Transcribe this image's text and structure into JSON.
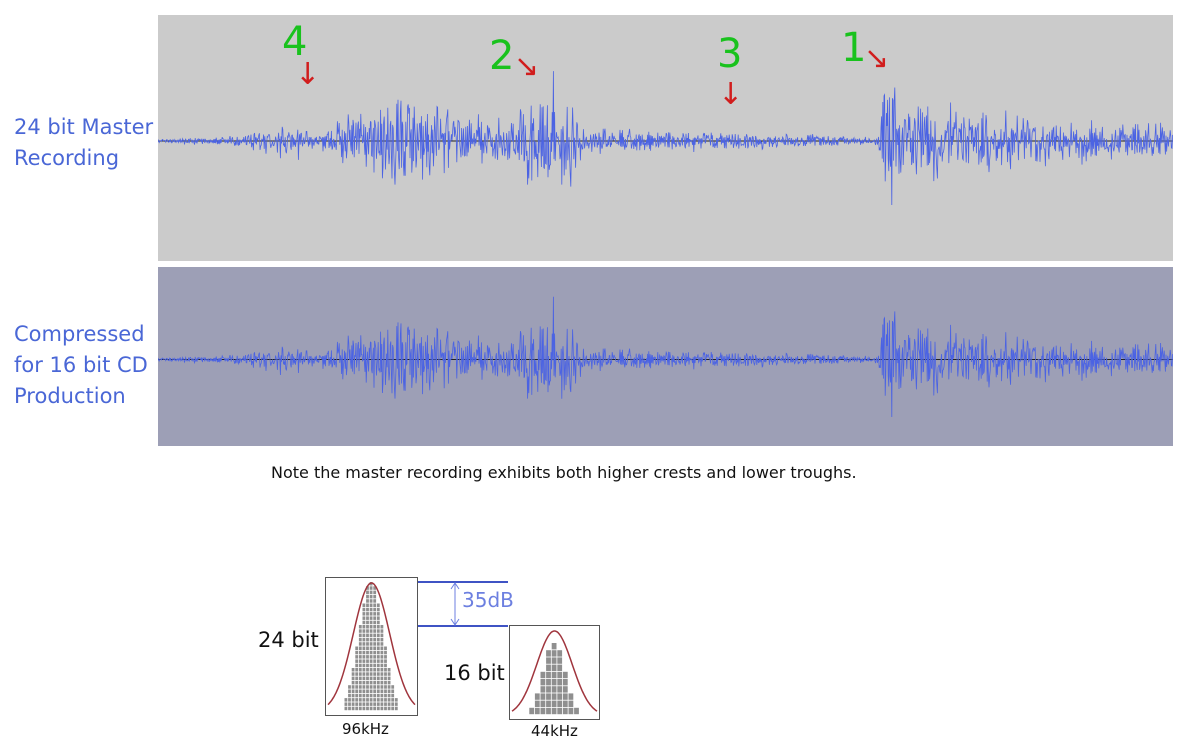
{
  "labels": {
    "master": [
      "24 bit Master",
      "Recording"
    ],
    "compressed": [
      "Compressed",
      "for 16 bit CD",
      "Production"
    ]
  },
  "markers": [
    {
      "number": "4"
    },
    {
      "number": "2"
    },
    {
      "number": "3"
    },
    {
      "number": "1"
    }
  ],
  "note": "Note the master recording exhibits both higher crests and lower troughs.",
  "histograms": {
    "high": {
      "bit_label": "24 bit",
      "freq_label": "96kHz"
    },
    "low": {
      "bit_label": "16 bit",
      "freq_label": "44kHz"
    },
    "difference_label": "35dB"
  },
  "colors": {
    "label_text": "#4a67d6",
    "waveform": "#4b63e3",
    "master_bg": "#cbcbcb",
    "compressed_bg": "#9d9fb6",
    "marker_number": "#19c21d",
    "marker_arrow": "#d11d1d",
    "db_line": "#3f53c4"
  }
}
